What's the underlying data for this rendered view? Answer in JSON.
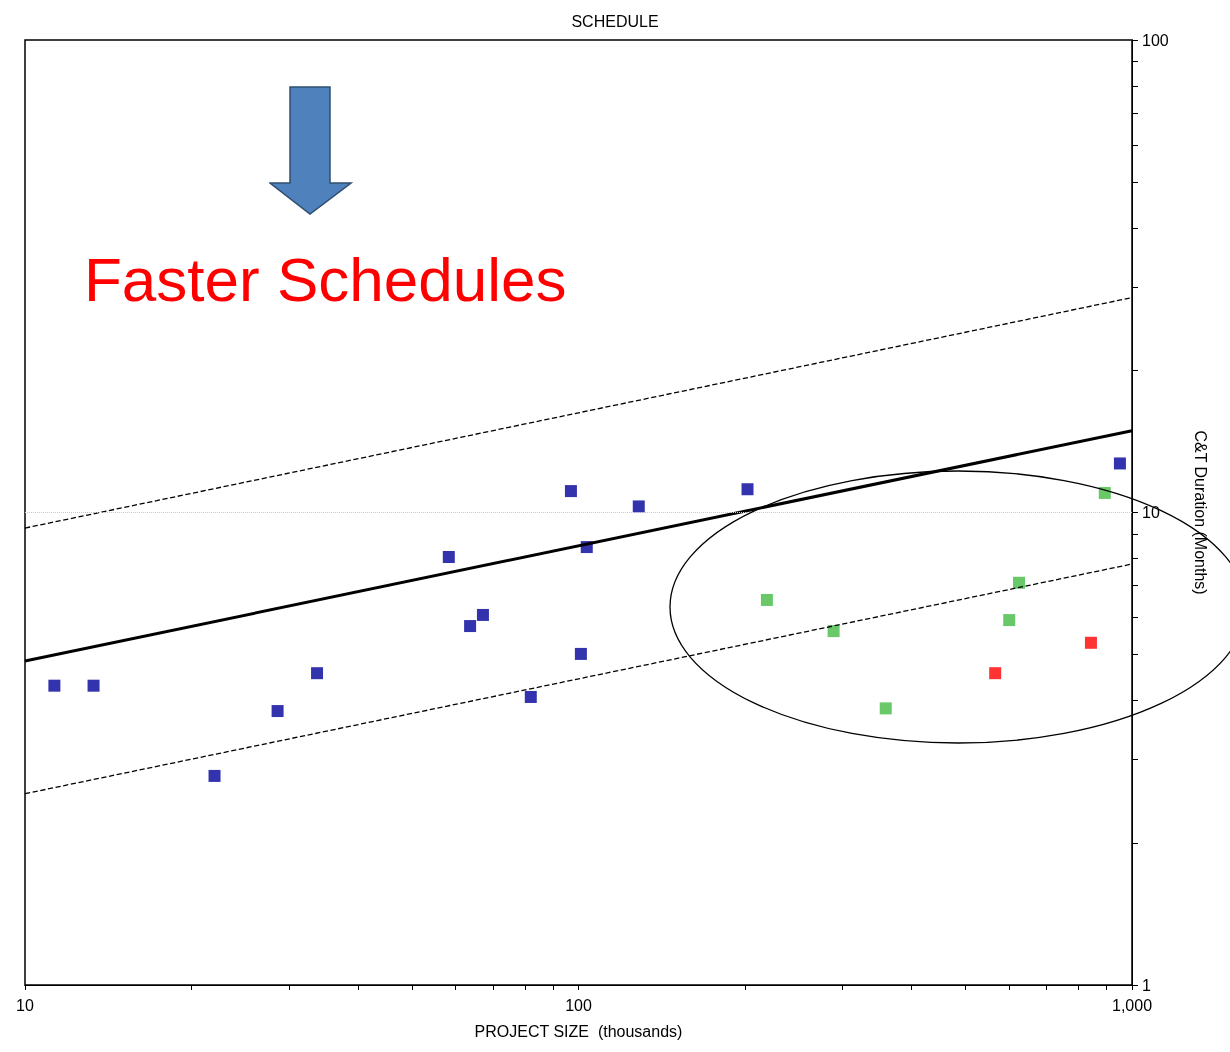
{
  "chart_data": {
    "type": "scatter",
    "title": "SCHEDULE",
    "xlabel": "PROJECT SIZE  (thousands)",
    "ylabel": "C&T Duration (Months)",
    "annotations": [
      "Faster Schedules"
    ],
    "log": "xy",
    "marker": "square",
    "xlim": [
      10,
      1000
    ],
    "xticks": [
      10,
      {
        "value": 20,
        "label": null
      },
      {
        "value": 30,
        "label": null
      },
      {
        "value": 40,
        "label": null
      },
      {
        "value": 50,
        "label": null
      },
      {
        "value": 60,
        "label": null
      },
      {
        "value": 70,
        "label": null
      },
      {
        "value": 80,
        "label": null
      },
      {
        "value": 90,
        "label": null
      },
      100,
      {
        "value": 200,
        "label": null
      },
      {
        "value": 300,
        "label": null
      },
      {
        "value": 400,
        "label": null
      },
      {
        "value": 500,
        "label": null
      },
      {
        "value": 600,
        "label": null
      },
      {
        "value": 700,
        "label": null
      },
      {
        "value": 800,
        "label": null
      },
      {
        "value": 900,
        "label": null
      },
      {
        "value": 1000,
        "label": "1,000"
      }
    ],
    "ylim": [
      1,
      100
    ],
    "yticks": [
      1,
      {
        "value": 2,
        "label": null
      },
      {
        "value": 3,
        "label": null
      },
      {
        "value": 4,
        "label": null
      },
      {
        "value": 5,
        "label": null
      },
      {
        "value": 6,
        "label": null
      },
      {
        "value": 7,
        "label": null
      },
      {
        "value": 8,
        "label": null
      },
      {
        "value": 9,
        "label": null
      },
      10,
      {
        "value": 20,
        "label": null
      },
      {
        "value": 30,
        "label": null
      },
      {
        "value": 40,
        "label": null
      },
      {
        "value": 50,
        "label": null
      },
      {
        "value": 60,
        "label": null
      },
      {
        "value": 70,
        "label": null
      },
      {
        "value": 80,
        "label": null
      },
      {
        "value": 90,
        "label": null
      },
      100
    ],
    "ref_lines": [
      {
        "axis": "y",
        "value": 10,
        "color": "#c8c8c8",
        "line_style": "dotted"
      }
    ],
    "series": [
      {
        "color": "#000099",
        "x": [
          11.3,
          13.3,
          22,
          28.6,
          33.7,
          58.3,
          63.7,
          67.2,
          82,
          96.9,
          101,
          103.5,
          128.5,
          202,
          951
        ],
        "values": [
          4.3,
          4.3,
          2.77,
          3.8,
          4.57,
          8.05,
          5.75,
          6.07,
          4.07,
          11.1,
          5.02,
          8.45,
          10.3,
          11.2,
          12.7
        ]
      },
      {
        "color": "#44bb44",
        "x": [
          219,
          289,
          359,
          600,
          625,
          893
        ],
        "values": [
          6.53,
          5.61,
          3.85,
          5.92,
          7.1,
          11
        ]
      },
      {
        "color": "#ff0000",
        "x": [
          566,
          843
        ],
        "values": [
          4.57,
          5.3
        ]
      },
      {
        "type": "line",
        "color": "#000000",
        "line_style": "solid",
        "marker": "none",
        "x": [
          10,
          1000
        ],
        "values": [
          4.85,
          14.9
        ]
      },
      {
        "type": "line",
        "color": "#000000",
        "line_style": "dashed",
        "marker": "none",
        "x": [
          10,
          1000
        ],
        "values": [
          9.27,
          28.5
        ]
      },
      {
        "type": "line",
        "color": "#000000",
        "line_style": "dashed",
        "marker": "none",
        "x": [
          10,
          1000
        ],
        "values": [
          2.54,
          7.78
        ]
      }
    ]
  }
}
